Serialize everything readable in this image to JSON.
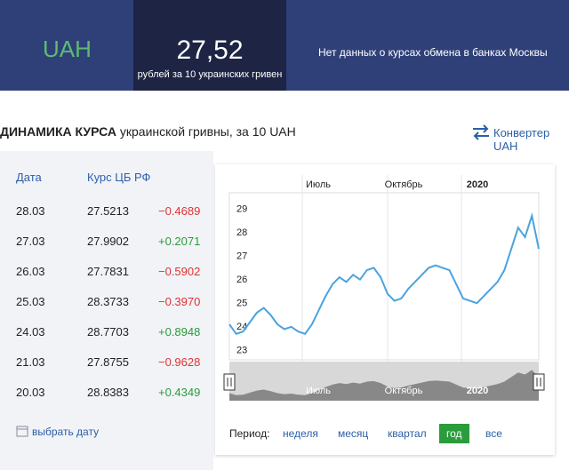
{
  "header": {
    "currency": "UAH",
    "rate": "27,52",
    "rate_note": "рублей за 10 украинских гривен",
    "bank_note": "Нет данных о курсах обмена в банках Москвы"
  },
  "section": {
    "title_bold": "ДИНАМИКА КУРСА",
    "title_rest": "украинской гривны, за 10 UAH",
    "converter": "Конвертер UAH"
  },
  "table": {
    "columns": [
      "Дата",
      "Курс ЦБ РФ"
    ],
    "rows": [
      [
        "28.03",
        "27.5213",
        "−0.4689"
      ],
      [
        "27.03",
        "27.9902",
        "+0.2071"
      ],
      [
        "26.03",
        "27.7831",
        "−0.5902"
      ],
      [
        "25.03",
        "28.3733",
        "−0.3970"
      ],
      [
        "24.03",
        "28.7703",
        "+0.8948"
      ],
      [
        "21.03",
        "27.8755",
        "−0.9628"
      ],
      [
        "20.03",
        "28.8383",
        "+0.4349"
      ]
    ],
    "pick_date": "выбрать дату"
  },
  "chart_data": {
    "type": "line",
    "color": "#4aa3df",
    "xtick_labels": [
      "Июль",
      "Октябрь",
      "2020"
    ],
    "values": [
      24.3,
      23.9,
      24.0,
      24.4,
      24.8,
      25.0,
      24.7,
      24.3,
      24.1,
      24.2,
      24.0,
      23.9,
      24.3,
      24.9,
      25.5,
      26.0,
      26.3,
      26.1,
      26.4,
      26.2,
      26.6,
      26.7,
      26.3,
      25.6,
      25.3,
      25.4,
      25.8,
      26.1,
      26.4,
      26.7,
      26.8,
      26.7,
      26.6,
      26.0,
      25.4,
      25.3,
      25.2,
      25.5,
      25.8,
      26.1,
      26.6,
      27.5,
      28.4,
      28.0,
      28.9,
      27.5
    ],
    "ylim": [
      22.8,
      29.5
    ],
    "yticks": [
      23,
      24,
      25,
      26,
      27,
      28,
      29
    ]
  },
  "period": {
    "label": "Период:",
    "options": [
      "неделя",
      "месяц",
      "квартал",
      "год",
      "все"
    ],
    "active": 3
  }
}
